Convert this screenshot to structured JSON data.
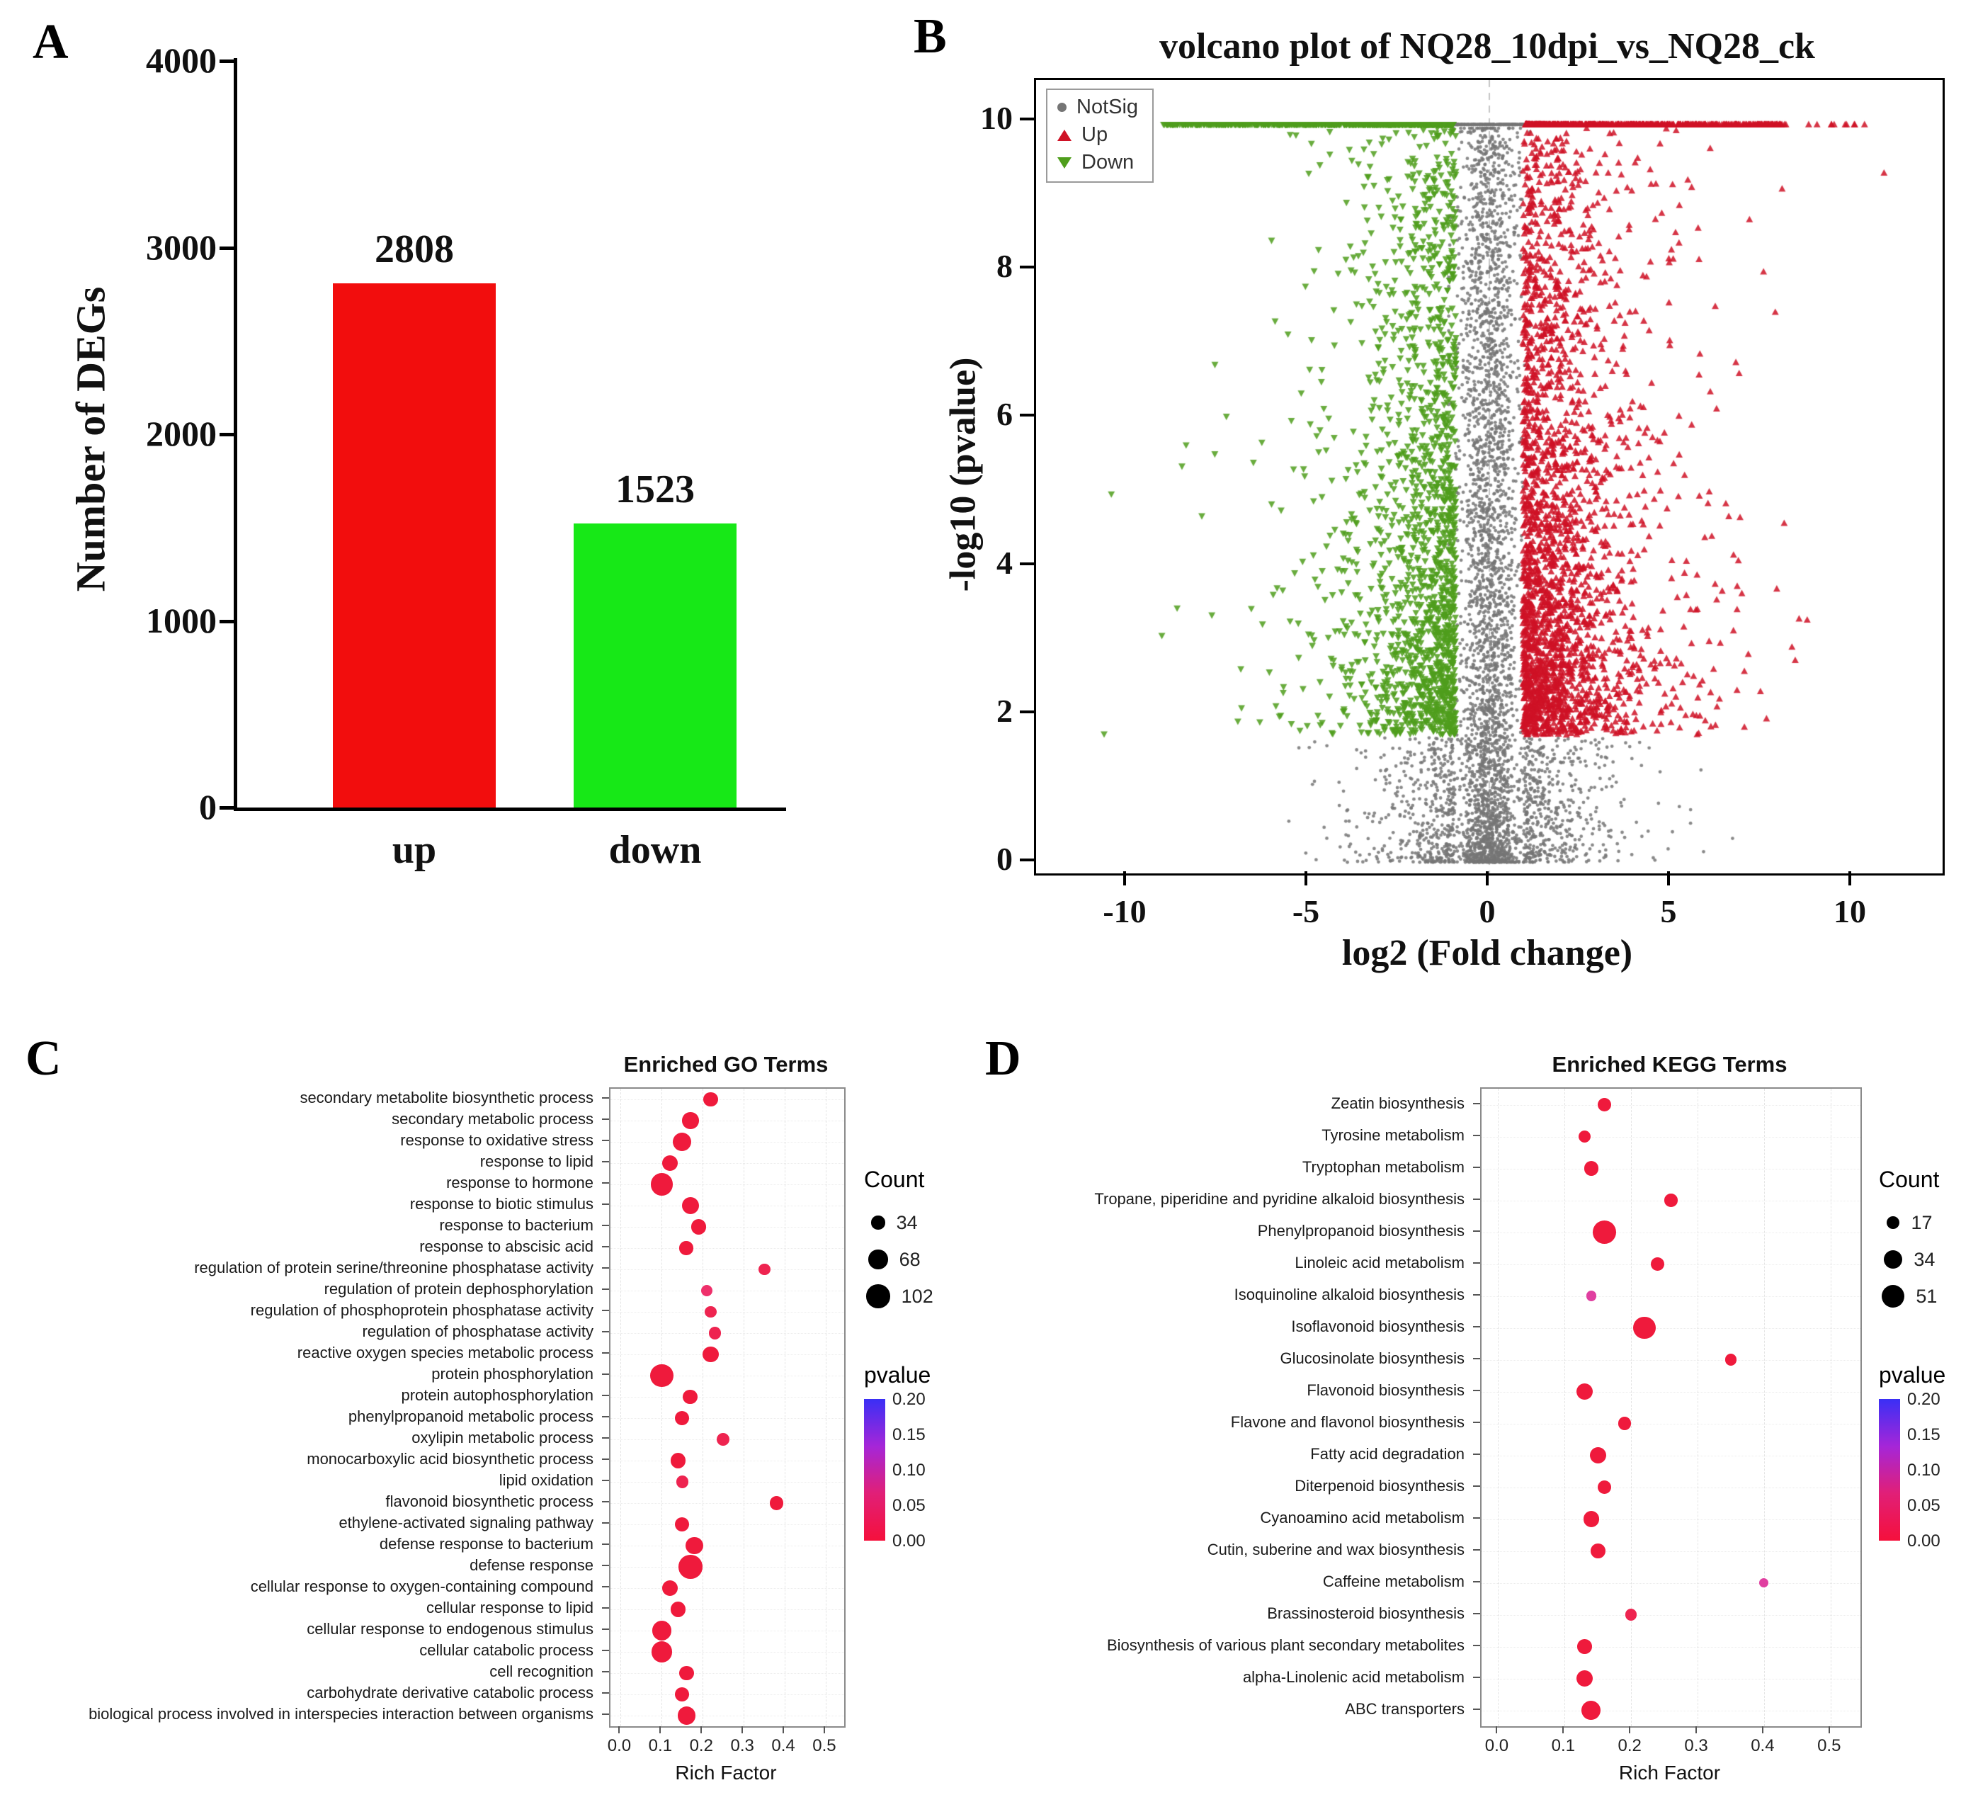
{
  "figure": {
    "background": "#ffffff"
  },
  "chart_data": [
    {
      "panel": "A",
      "type": "bar",
      "categories": [
        "up",
        "down"
      ],
      "values": [
        2808,
        1523
      ],
      "value_labels": [
        "2808",
        "1523"
      ],
      "colors": [
        "#f20d0d",
        "#17e817"
      ],
      "ylabel": "Number of DEGs",
      "yticks": [
        0,
        1000,
        2000,
        3000,
        4000
      ],
      "ylim": [
        0,
        4000
      ]
    },
    {
      "panel": "B",
      "type": "scatter",
      "subtype": "volcano",
      "title": "volcano plot of NQ28_10dpi_vs_NQ28_ck",
      "xlabel": "log2 (Fold change)",
      "ylabel": "-log10 (pvalue)",
      "xticks": [
        -10,
        -5,
        0,
        5,
        10
      ],
      "yticks": [
        0,
        2,
        4,
        6,
        8,
        10
      ],
      "xlim": [
        -12.5,
        12.5
      ],
      "ylim": [
        0,
        10.55
      ],
      "pvalue_cap": 10,
      "sig_threshold_neglog10p": 1.7,
      "fold_change_threshold": 1,
      "vline_x": 0,
      "legend": [
        {
          "label": "NotSig",
          "shape": "circle",
          "color": "#757575"
        },
        {
          "label": "Up",
          "shape": "triangle-up",
          "color": "#cf1226",
          "count": 2808
        },
        {
          "label": "Down",
          "shape": "triangle-down",
          "color": "#4f9e1c",
          "count": 1523
        }
      ]
    },
    {
      "panel": "C",
      "type": "dotplot",
      "title": "Enriched GO Terms",
      "xlabel": "Rich Factor",
      "xticks": [
        0,
        0.1,
        0.2,
        0.3,
        0.4,
        0.5
      ],
      "xlim": [
        -0.025,
        0.545
      ],
      "legend_count": {
        "title": "Count",
        "sizes": [
          34,
          68,
          102
        ]
      },
      "legend_pvalue": {
        "title": "pvalue",
        "ticks": [
          "0.20",
          "0.15",
          "0.10",
          "0.05",
          "0.00"
        ],
        "gradient": [
          "#3a2ff5",
          "#a526d8",
          "#e11f77",
          "#f5103c"
        ]
      },
      "terms": [
        {
          "label": "secondary metabolite biosynthetic process",
          "rich_factor": 0.22,
          "count": 40,
          "color": "#ef1a3c"
        },
        {
          "label": "secondary metabolic process",
          "rich_factor": 0.17,
          "count": 50,
          "color": "#ef1a3c"
        },
        {
          "label": "response to oxidative stress",
          "rich_factor": 0.15,
          "count": 62,
          "color": "#ef1a3c"
        },
        {
          "label": "response to lipid",
          "rich_factor": 0.12,
          "count": 45,
          "color": "#ef1a3c"
        },
        {
          "label": "response to hormone",
          "rich_factor": 0.1,
          "count": 90,
          "color": "#ef1a3c"
        },
        {
          "label": "response to biotic stimulus",
          "rich_factor": 0.17,
          "count": 55,
          "color": "#ef1a3c"
        },
        {
          "label": "response to bacterium",
          "rich_factor": 0.19,
          "count": 42,
          "color": "#ef1a3c"
        },
        {
          "label": "response to abscisic acid",
          "rich_factor": 0.16,
          "count": 34,
          "color": "#ef1a3c"
        },
        {
          "label": "regulation of protein serine/threonine phosphatase activity",
          "rich_factor": 0.35,
          "count": 26,
          "color": "#ee2450"
        },
        {
          "label": "regulation of protein dephosphorylation",
          "rich_factor": 0.21,
          "count": 24,
          "color": "#ee2f6a"
        },
        {
          "label": "regulation of phosphoprotein phosphatase activity",
          "rich_factor": 0.22,
          "count": 26,
          "color": "#ee2450"
        },
        {
          "label": "regulation of phosphatase activity",
          "rich_factor": 0.23,
          "count": 28,
          "color": "#ee2450"
        },
        {
          "label": "reactive oxygen species metabolic process",
          "rich_factor": 0.22,
          "count": 48,
          "color": "#ef1a3c"
        },
        {
          "label": "protein phosphorylation",
          "rich_factor": 0.1,
          "count": 96,
          "color": "#ef1a3c"
        },
        {
          "label": "protein autophosphorylation",
          "rich_factor": 0.17,
          "count": 40,
          "color": "#ef1a3c"
        },
        {
          "label": "phenylpropanoid metabolic process",
          "rich_factor": 0.15,
          "count": 38,
          "color": "#ef1a3c"
        },
        {
          "label": "oxylipin metabolic process",
          "rich_factor": 0.25,
          "count": 30,
          "color": "#ee2450"
        },
        {
          "label": "monocarboxylic acid biosynthetic process",
          "rich_factor": 0.14,
          "count": 44,
          "color": "#ef1a3c"
        },
        {
          "label": "lipid oxidation",
          "rich_factor": 0.15,
          "count": 28,
          "color": "#ee2450"
        },
        {
          "label": "flavonoid biosynthetic process",
          "rich_factor": 0.38,
          "count": 36,
          "color": "#ef1a3c"
        },
        {
          "label": "ethylene-activated signaling pathway",
          "rich_factor": 0.15,
          "count": 38,
          "color": "#ef1a3c"
        },
        {
          "label": "defense response to bacterium",
          "rich_factor": 0.18,
          "count": 56,
          "color": "#ef1a3c"
        },
        {
          "label": "defense response",
          "rich_factor": 0.17,
          "count": 102,
          "color": "#ef1a3c"
        },
        {
          "label": "cellular response to oxygen-containing compound",
          "rich_factor": 0.12,
          "count": 46,
          "color": "#ef1a3c"
        },
        {
          "label": "cellular response to lipid",
          "rich_factor": 0.14,
          "count": 44,
          "color": "#ef1a3c"
        },
        {
          "label": "cellular response to endogenous stimulus",
          "rich_factor": 0.1,
          "count": 68,
          "color": "#ef1a3c"
        },
        {
          "label": "cellular catabolic process",
          "rich_factor": 0.1,
          "count": 80,
          "color": "#ef1a3c"
        },
        {
          "label": "cell recognition",
          "rich_factor": 0.16,
          "count": 40,
          "color": "#ef1a3c"
        },
        {
          "label": "carbohydrate derivative catabolic process",
          "rich_factor": 0.15,
          "count": 36,
          "color": "#ef1a3c"
        },
        {
          "label": "biological process involved in interspecies interaction between organisms",
          "rich_factor": 0.16,
          "count": 58,
          "color": "#ef1a3c"
        }
      ]
    },
    {
      "panel": "D",
      "type": "dotplot",
      "title": "Enriched KEGG Terms",
      "xlabel": "Rich Factor",
      "xticks": [
        0,
        0.1,
        0.2,
        0.3,
        0.4,
        0.5
      ],
      "xlim": [
        -0.025,
        0.545
      ],
      "legend_count": {
        "title": "Count",
        "sizes": [
          17,
          34,
          51
        ]
      },
      "legend_pvalue": {
        "title": "pvalue",
        "ticks": [
          "0.20",
          "0.15",
          "0.10",
          "0.05",
          "0.00"
        ],
        "gradient": [
          "#3a2ff5",
          "#a526d8",
          "#e11f77",
          "#f5103c"
        ]
      },
      "terms": [
        {
          "label": "Zeatin biosynthesis",
          "rich_factor": 0.16,
          "count": 18,
          "color": "#ef1a3c"
        },
        {
          "label": "Tyrosine metabolism",
          "rich_factor": 0.13,
          "count": 15,
          "color": "#ef1a3c"
        },
        {
          "label": "Tryptophan metabolism",
          "rich_factor": 0.14,
          "count": 20,
          "color": "#ef1a3c"
        },
        {
          "label": "Tropane, piperidine and pyridine alkaloid biosynthesis",
          "rich_factor": 0.26,
          "count": 16,
          "color": "#ef1a3c"
        },
        {
          "label": "Phenylpropanoid biosynthesis",
          "rich_factor": 0.16,
          "count": 51,
          "color": "#ef1a3c"
        },
        {
          "label": "Linoleic acid metabolism",
          "rich_factor": 0.24,
          "count": 18,
          "color": "#ef1a3c"
        },
        {
          "label": "Isoquinoline alkaloid biosynthesis",
          "rich_factor": 0.14,
          "count": 10,
          "color": "#e03fa0"
        },
        {
          "label": "Isoflavonoid biosynthesis",
          "rich_factor": 0.22,
          "count": 46,
          "color": "#ef1a3c"
        },
        {
          "label": "Glucosinolate biosynthesis",
          "rich_factor": 0.35,
          "count": 13,
          "color": "#ef1a3c"
        },
        {
          "label": "Flavonoid biosynthesis",
          "rich_factor": 0.13,
          "count": 26,
          "color": "#ef1a3c"
        },
        {
          "label": "Flavone and flavonol biosynthesis",
          "rich_factor": 0.19,
          "count": 16,
          "color": "#ef1a3c"
        },
        {
          "label": "Fatty acid degradation",
          "rich_factor": 0.15,
          "count": 26,
          "color": "#ef1a3c"
        },
        {
          "label": "Diterpenoid biosynthesis",
          "rich_factor": 0.16,
          "count": 17,
          "color": "#ef1a3c"
        },
        {
          "label": "Cyanoamino acid metabolism",
          "rich_factor": 0.14,
          "count": 24,
          "color": "#ef1a3c"
        },
        {
          "label": "Cutin, suberine and wax biosynthesis",
          "rich_factor": 0.15,
          "count": 20,
          "color": "#ef1a3c"
        },
        {
          "label": "Caffeine metabolism",
          "rich_factor": 0.4,
          "count": 8,
          "color": "#e03fa0"
        },
        {
          "label": "Brassinosteroid biosynthesis",
          "rich_factor": 0.2,
          "count": 13,
          "color": "#ee2450"
        },
        {
          "label": "Biosynthesis of various plant secondary metabolites",
          "rich_factor": 0.13,
          "count": 20,
          "color": "#ef1a3c"
        },
        {
          "label": "alpha-Linolenic acid metabolism",
          "rich_factor": 0.13,
          "count": 26,
          "color": "#ef1a3c"
        },
        {
          "label": "ABC transporters",
          "rich_factor": 0.14,
          "count": 34,
          "color": "#ef1a3c"
        }
      ]
    }
  ]
}
